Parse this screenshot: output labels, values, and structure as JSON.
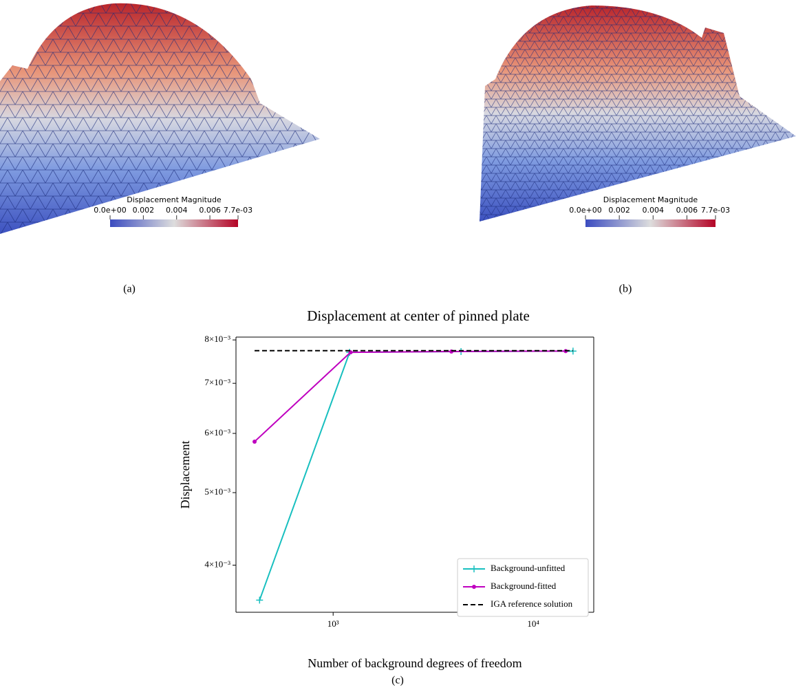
{
  "panels": [
    {
      "caption": "(a)",
      "colorbar": {
        "title": "Displacement  Magnitude",
        "ticks": [
          "0.0e+00",
          "0.002",
          "0.004",
          "0.006",
          "7.7e-03"
        ]
      }
    },
    {
      "caption": "(b)",
      "colorbar": {
        "title": "Displacement  Magnitude",
        "ticks": [
          "0.0e+00",
          "0.002",
          "0.004",
          "0.006",
          "7.7e-03"
        ]
      }
    }
  ],
  "caption_c": "(c)",
  "chart_data": {
    "type": "line",
    "title": "Displacement at center of pinned plate",
    "xlabel": "Number of background degrees of freedom",
    "ylabel": "Displacement",
    "xscale": "log",
    "yscale": "log",
    "xlim": [
      327,
      20050
    ],
    "ylim": [
      0.00346,
      0.00807
    ],
    "xticks": [
      {
        "value": 1000,
        "label": "10³"
      },
      {
        "value": 10000,
        "label": "10⁴"
      }
    ],
    "yticks": [
      {
        "value": 0.004,
        "label": "4×10⁻³"
      },
      {
        "value": 0.005,
        "label": "5×10⁻³"
      },
      {
        "value": 0.006,
        "label": "6×10⁻³"
      },
      {
        "value": 0.007,
        "label": "7×10⁻³"
      },
      {
        "value": 0.008,
        "label": "8×10⁻³"
      }
    ],
    "legend": "lower right",
    "series": [
      {
        "name": "Background-unfitted",
        "color": "#17bfbf",
        "marker": "plus",
        "dash": "solid",
        "x": [
          429,
          1209,
          4355,
          15800
        ],
        "values": [
          0.003592,
          0.0077,
          0.00772,
          0.00773
        ]
      },
      {
        "name": "Background-fitted",
        "color": "#bf00bf",
        "marker": "dot",
        "dash": "solid",
        "x": [
          405,
          1222,
          3900,
          14520
        ],
        "values": [
          0.00585,
          0.0077,
          0.00772,
          0.00773
        ]
      },
      {
        "name": "IGA reference solution",
        "color": "#000000",
        "marker": "none",
        "dash": "dashed",
        "x": [
          405,
          15800
        ],
        "values": [
          0.00774,
          0.00774
        ]
      }
    ]
  }
}
